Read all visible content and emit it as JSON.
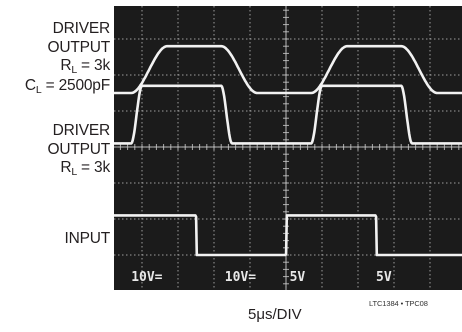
{
  "chart_data": {
    "type": "line",
    "title": "",
    "xlabel": "5μs/DIV",
    "ylabel": "",
    "x_divisions": 10,
    "y_divisions": 8,
    "grid": true,
    "traces": [
      {
        "label_lines": [
          "DRIVER",
          "OUTPUT",
          "R_L = 3k",
          "C_L = 2500pF"
        ],
        "shape": "rounded-square",
        "period_div": 5.0,
        "duty": 0.5,
        "first_rise_div": 0.7,
        "rise_div": 1.0,
        "high_y_div": 6.8,
        "low_y_div": 5.5,
        "scale": "10V="
      },
      {
        "label_lines": [
          "DRIVER",
          "OUTPUT",
          "R_L = 3k"
        ],
        "shape": "square",
        "period_div": 5.0,
        "duty": 0.5,
        "first_rise_div": 0.7,
        "rise_div": 0.3,
        "high_y_div": 5.7,
        "low_y_div": 4.1,
        "scale": "10V="
      },
      {
        "label_lines": [
          "INPUT"
        ],
        "shape": "square",
        "period_div": 5.0,
        "duty": 0.5,
        "first_rise_div": 0.0,
        "rise_div": 0.02,
        "high_y_div": 2.1,
        "low_y_div": 1.0,
        "scale": "5V"
      }
    ],
    "scale_readouts": [
      "10V=",
      "10V=",
      "5V",
      "5V"
    ]
  },
  "labels": {
    "trace1": {
      "l1": "DRIVER",
      "l2": "OUTPUT",
      "l3_main": "R",
      "l3_sub": "L",
      "l3_rest": " = 3k",
      "l4_main": "C",
      "l4_sub": "L",
      "l4_rest": " = 2500pF"
    },
    "trace2": {
      "l1": "DRIVER",
      "l2": "OUTPUT",
      "l3_main": "R",
      "l3_sub": "L",
      "l3_rest": " = 3k"
    },
    "trace3": {
      "l1": "INPUT"
    }
  },
  "credit": "LTC1384 • TPC08",
  "colors": {
    "screen": "#1b1b1b",
    "grid": "#c8c8c8",
    "trace": "#f2f2f2",
    "readout": "#e8e8e8"
  }
}
